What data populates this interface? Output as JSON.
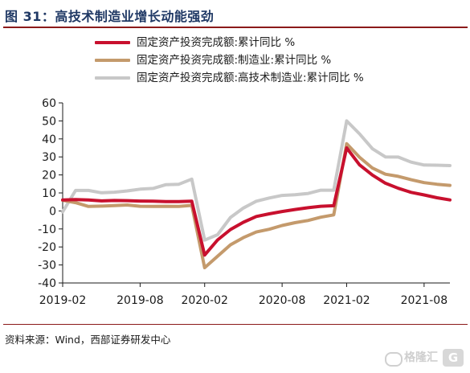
{
  "header": {
    "title": "图 31：高技术制造业增长动能强劲"
  },
  "source_text": "资料来源：Wind，西部证券研发中心",
  "watermark": {
    "text": "格隆汇",
    "badge": "G"
  },
  "chart_data": {
    "type": "line",
    "x": [
      "2019-02",
      "2019-03",
      "2019-04",
      "2019-05",
      "2019-06",
      "2019-07",
      "2019-08",
      "2019-09",
      "2019-10",
      "2019-11",
      "2019-12",
      "2020-02",
      "2020-03",
      "2020-04",
      "2020-05",
      "2020-06",
      "2020-07",
      "2020-08",
      "2020-09",
      "2020-10",
      "2020-11",
      "2020-12",
      "2021-02",
      "2021-03",
      "2021-04",
      "2021-05",
      "2021-06",
      "2021-07",
      "2021-08",
      "2021-09",
      "2021-10"
    ],
    "xticks": [
      "2019-02",
      "2019-08",
      "2020-02",
      "2020-08",
      "2021-02",
      "2021-08"
    ],
    "yticks": [
      "60",
      "50",
      "40",
      "30",
      "20",
      "10",
      "0",
      "-10",
      "-20",
      "-30",
      "-40"
    ],
    "ylim": [
      -40,
      60
    ],
    "series": [
      {
        "name": "固定资产投资完成额:累计同比 %",
        "color": "#c8102e",
        "values": [
          6.1,
          6.3,
          6.1,
          5.6,
          5.8,
          5.7,
          5.5,
          5.4,
          5.2,
          5.2,
          5.4,
          -24.5,
          -16.1,
          -10.3,
          -6.3,
          -3.1,
          -1.6,
          -0.3,
          0.8,
          1.8,
          2.6,
          2.9,
          35.0,
          25.6,
          19.9,
          15.4,
          12.6,
          10.3,
          8.9,
          7.3,
          6.1
        ]
      },
      {
        "name": "固定资产投资完成额:制造业:累计同比 %",
        "color": "#c49a6c",
        "values": [
          5.9,
          4.6,
          2.5,
          2.7,
          3.0,
          3.3,
          2.6,
          2.5,
          2.6,
          2.5,
          3.1,
          -31.5,
          -25.2,
          -18.8,
          -14.8,
          -11.7,
          -10.2,
          -8.1,
          -6.5,
          -5.3,
          -3.5,
          -2.2,
          37.3,
          29.8,
          23.8,
          20.4,
          19.2,
          17.3,
          15.7,
          14.8,
          14.2
        ]
      },
      {
        "name": "固定资产投资完成额:高技术制造业:累计同比 %",
        "color": "#c8c8c8",
        "values": [
          -0.5,
          11.4,
          11.4,
          10.1,
          10.4,
          11.1,
          12.1,
          12.5,
          14.6,
          14.8,
          17.7,
          -16.2,
          -13.2,
          -3.6,
          1.6,
          5.4,
          7.2,
          8.6,
          9.0,
          9.7,
          11.5,
          11.5,
          50.0,
          42.8,
          34.5,
          30.0,
          29.9,
          27.1,
          25.5,
          25.4,
          25.2
        ]
      }
    ]
  }
}
